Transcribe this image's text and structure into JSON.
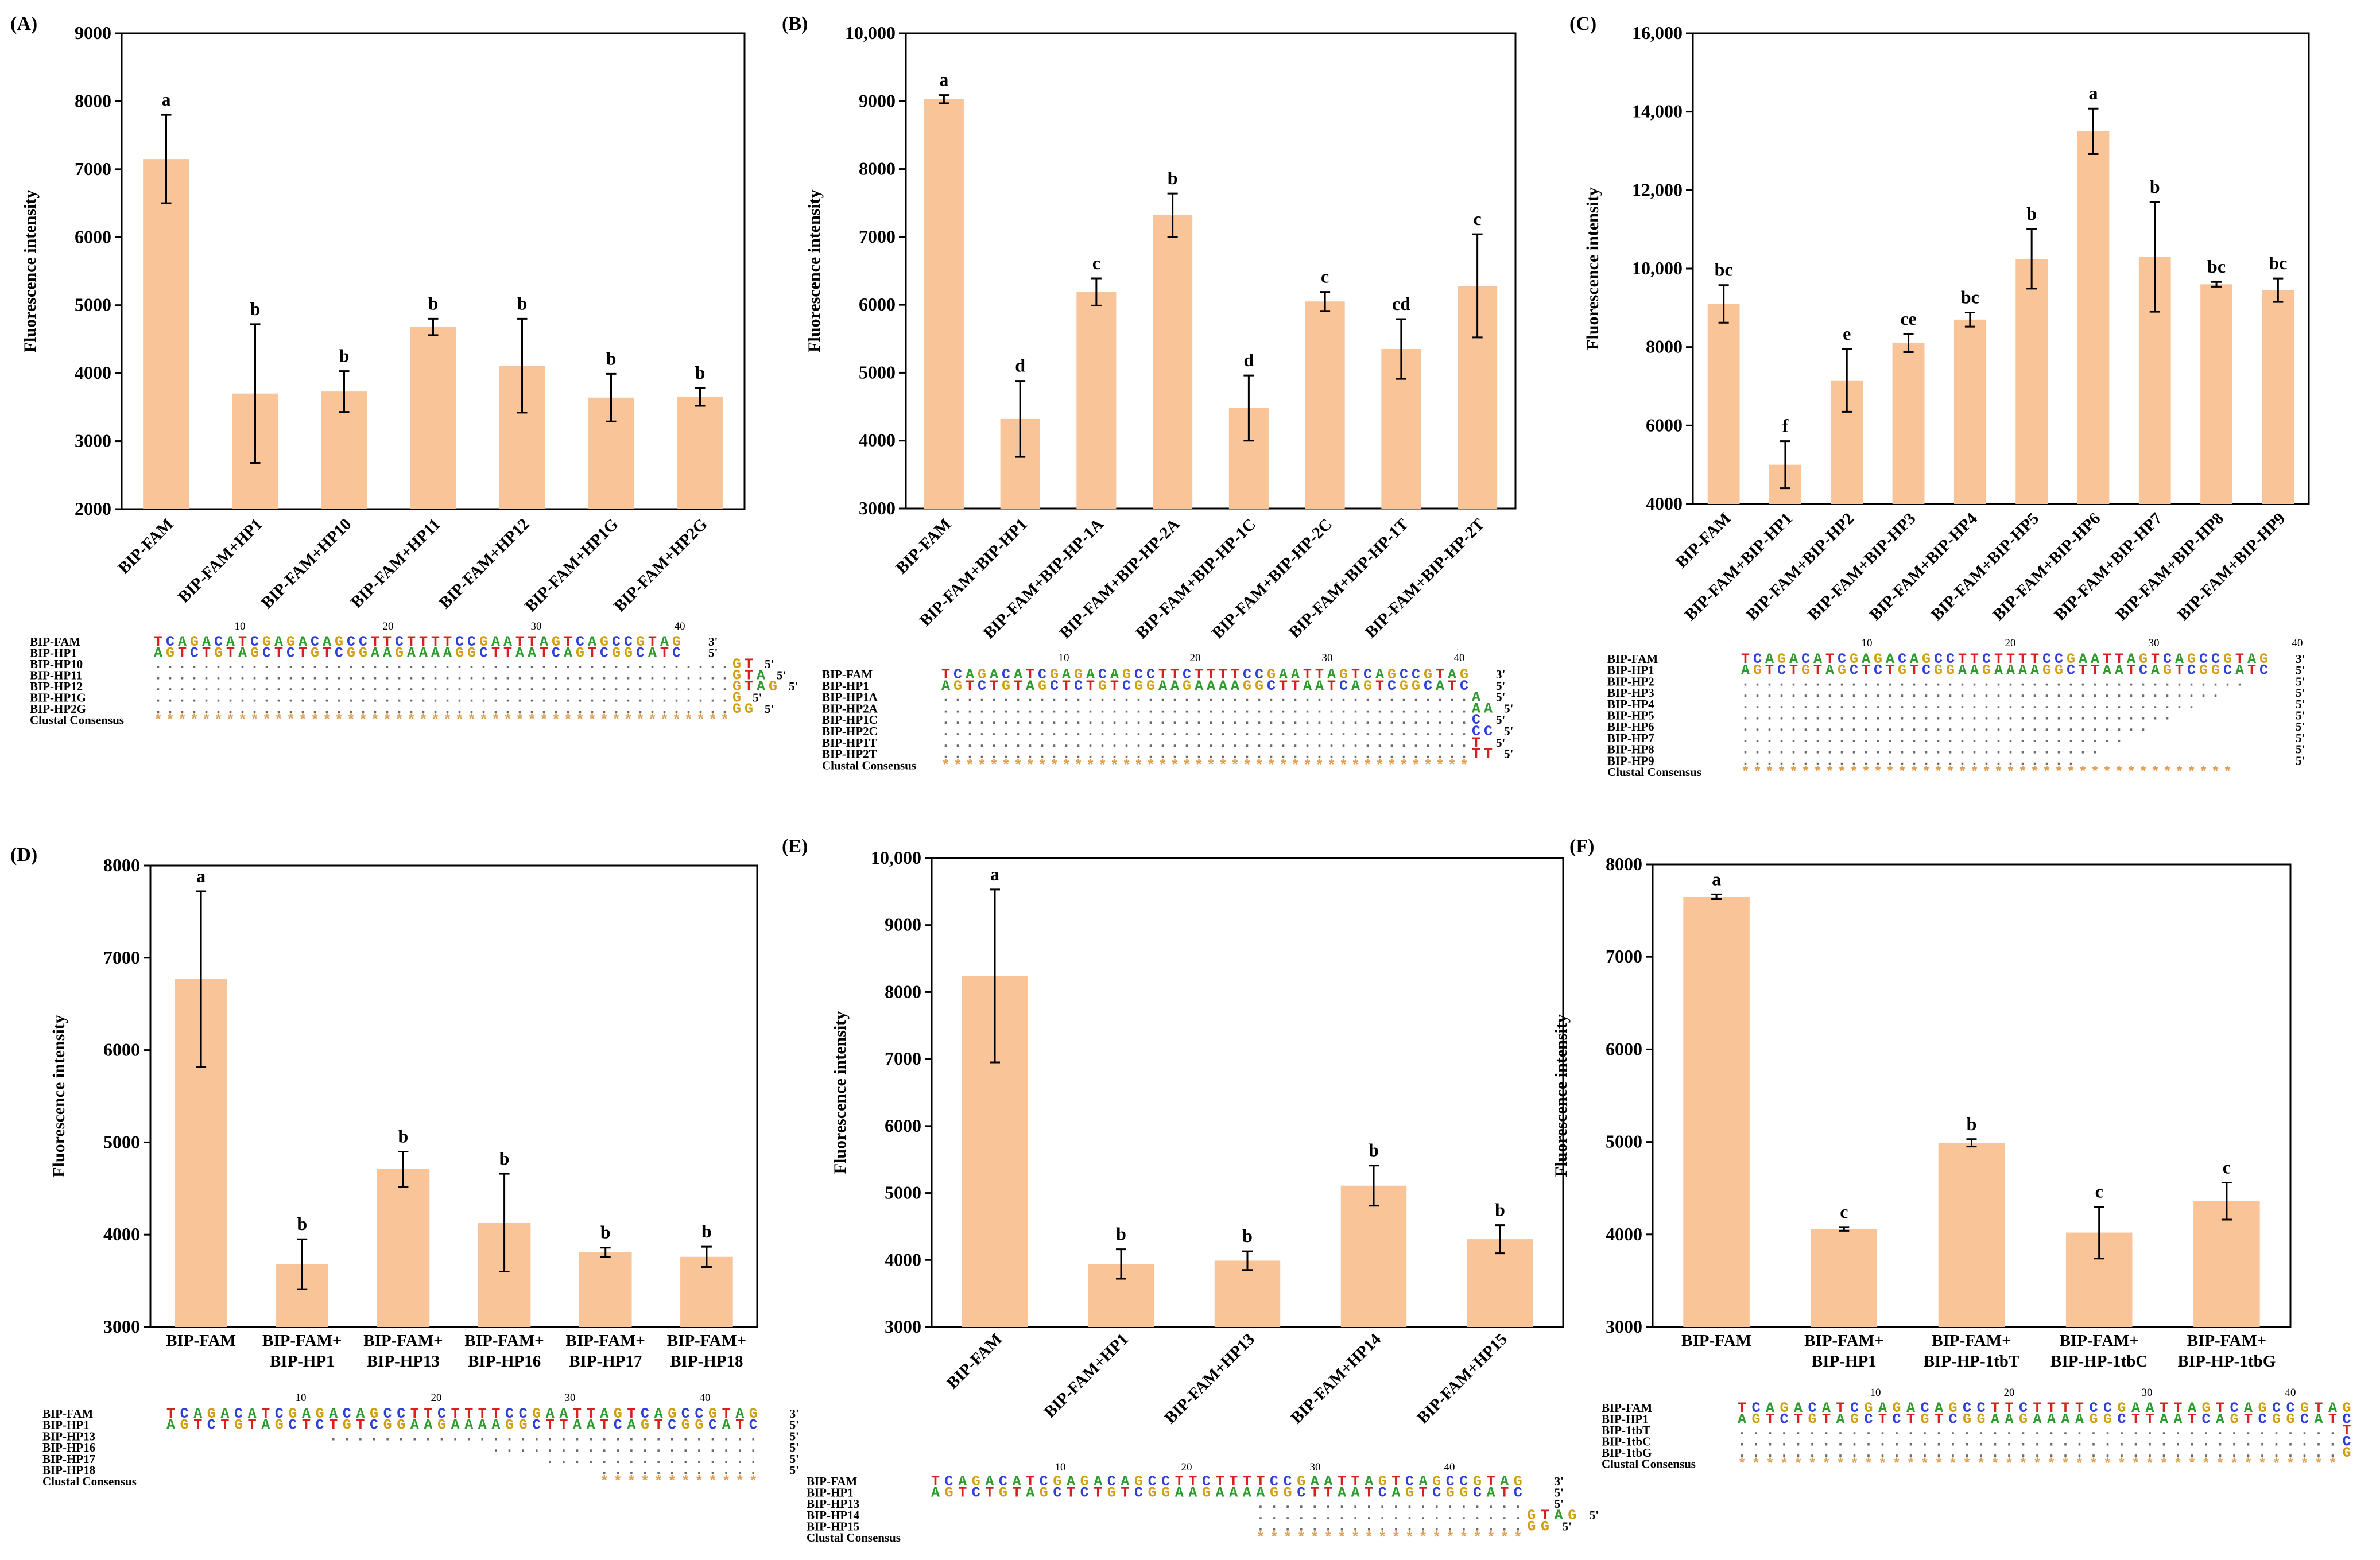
{
  "figure": {
    "ylabel_default": "Fluorescence intensity",
    "colors": {
      "bar": "#f9c498",
      "error": "#000000",
      "A": "#2e9b2e",
      "C": "#2f3fd6",
      "G": "#d0a010",
      "T": "#d82020",
      "dot": "#6a6a6a",
      "consensus": "#e0a050",
      "axis": "#000000"
    }
  },
  "chart_data": [
    {
      "panel_label": "(A)",
      "type": "bar",
      "title": "",
      "xlabel": "",
      "ylabel": "Fluorescence intensity",
      "ylim": [
        2000,
        9000
      ],
      "yticks": [
        "2000",
        "3000",
        "4000",
        "5000",
        "6000",
        "7000",
        "8000",
        "9000"
      ],
      "categories": [
        "BIP-FAM",
        "BIP-FAM+HP1",
        "BIP-FAM+HP10",
        "BIP-FAM+HP11",
        "BIP-FAM+HP12",
        "BIP-FAM+HP1G",
        "BIP-FAM+HP2G"
      ],
      "category_style": "rotated",
      "values": [
        7150,
        3700,
        3730,
        4680,
        4110,
        3640,
        3650
      ],
      "errors": [
        650,
        1020,
        300,
        120,
        690,
        350,
        130
      ],
      "letters": [
        "a",
        "b",
        "b",
        "b",
        "b",
        "b",
        "b"
      ],
      "alignment": {
        "ruler": [
          "10",
          "20",
          "30",
          "40"
        ],
        "rows": [
          {
            "name": "BIP-FAM",
            "seq": "TCAGACATCGAGACAGCCTTCTTTTCCGAATTAGTCAGCCGTAG",
            "end": "3'"
          },
          {
            "name": "BIP-HP1",
            "seq": "AGTCTGTAGCTCTGTCGGAAGAAAAGGCTTAATCAGTCGGCATC",
            "end": "5'"
          },
          {
            "name": "BIP-HP10",
            "seq": "................................................GT",
            "end": "5'"
          },
          {
            "name": "BIP-HP11",
            "seq": "................................................GTA",
            "end": "5'"
          },
          {
            "name": "BIP-HP12",
            "seq": "................................................GTAG",
            "end": "5'"
          },
          {
            "name": "BIP-HP1G",
            "seq": "................................................G",
            "end": "5'"
          },
          {
            "name": "BIP-HP2G",
            "seq": "................................................GG",
            "end": "5'"
          },
          {
            "name": "Clustal Consensus",
            "seq": "************************************************",
            "end": ""
          }
        ]
      }
    },
    {
      "panel_label": "(B)",
      "type": "bar",
      "title": "",
      "xlabel": "",
      "ylabel": "Fluorescence intensity",
      "ylim": [
        3000,
        10000
      ],
      "yticks": [
        "3000",
        "4000",
        "5000",
        "6000",
        "7000",
        "8000",
        "9000",
        "10,000"
      ],
      "categories": [
        "BIP-FAM",
        "BIP-FAM+BIP-HP1",
        "BIP-FAM+BIP-HP-1A",
        "BIP-FAM+BIP-HP-2A",
        "BIP-FAM+BIP-HP-1C",
        "BIP-FAM+BIP-HP-2C",
        "BIP-FAM+BIP-HP-1T",
        "BIP-FAM+BIP-HP-2T"
      ],
      "category_style": "rotated",
      "values": [
        9030,
        4320,
        6190,
        7320,
        4480,
        6050,
        5350,
        6280
      ],
      "errors": [
        60,
        560,
        200,
        320,
        480,
        140,
        440,
        760
      ],
      "letters": [
        "a",
        "d",
        "c",
        "b",
        "d",
        "c",
        "cd",
        "c"
      ],
      "alignment": {
        "ruler": [
          "10",
          "20",
          "30",
          "40"
        ],
        "rows": [
          {
            "name": "BIP-FAM",
            "seq": "TCAGACATCGAGACAGCCTTCTTTTCCGAATTAGTCAGCCGTAG",
            "end": "3'"
          },
          {
            "name": "BIP-HP1",
            "seq": "AGTCTGTAGCTCTGTCGGAAGAAAAGGCTTAATCAGTCGGCATC",
            "end": "5'"
          },
          {
            "name": "BIP-HP1A",
            "seq": "............................................A",
            "end": "5'"
          },
          {
            "name": "BIP-HP2A",
            "seq": "............................................AA",
            "end": "5'"
          },
          {
            "name": "BIP-HP1C",
            "seq": "............................................C",
            "end": "5'"
          },
          {
            "name": "BIP-HP2C",
            "seq": "............................................CC",
            "end": "5'"
          },
          {
            "name": "BIP-HP1T",
            "seq": "............................................T",
            "end": "5'"
          },
          {
            "name": "BIP-HP2T",
            "seq": "............................................TT",
            "end": "5'"
          },
          {
            "name": "Clustal Consensus",
            "seq": "********************************************",
            "end": ""
          }
        ]
      }
    },
    {
      "panel_label": "(C)",
      "type": "bar",
      "title": "",
      "xlabel": "",
      "ylabel": "Fluorescence intensity",
      "ylim": [
        4000,
        16000
      ],
      "yticks": [
        "4000",
        "6000",
        "8000",
        "10,000",
        "12,000",
        "14,000",
        "16,000"
      ],
      "categories": [
        "BIP-FAM",
        "BIP-FAM+BIP-HP1",
        "BIP-FAM+BIP-HP2",
        "BIP-FAM+BIP-HP3",
        "BIP-FAM+BIP-HP4",
        "BIP-FAM+BIP-HP5",
        "BIP-FAM+BIP-HP6",
        "BIP-FAM+BIP-HP7",
        "BIP-FAM+BIP-HP8",
        "BIP-FAM+BIP-HP9"
      ],
      "category_style": "rotated",
      "values": [
        9100,
        5000,
        7150,
        8100,
        8700,
        10250,
        13500,
        10300,
        9600,
        9450
      ],
      "errors": [
        480,
        600,
        800,
        230,
        180,
        760,
        580,
        1400,
        60,
        300
      ],
      "letters": [
        "bc",
        "f",
        "e",
        "ce",
        "bc",
        "b",
        "a",
        "b",
        "bc",
        "bc"
      ],
      "alignment": {
        "ruler": [
          "10",
          "20",
          "30",
          "40"
        ],
        "rows": [
          {
            "name": "BIP-FAM",
            "seq": "TCAGACATCGAGACAGCCTTCTTTTCCGAATTAGTCAGCCGTAG",
            "end": "3'"
          },
          {
            "name": "BIP-HP1",
            "seq": "AGTCTGTAGCTCTGTCGGAAGAAAAGGCTTAATCAGTCGGCATC",
            "end": "5'"
          },
          {
            "name": "BIP-HP2",
            "seq": "..........................................",
            "end": "5'"
          },
          {
            "name": "BIP-HP3",
            "seq": "........................................",
            "end": "5'"
          },
          {
            "name": "BIP-HP4",
            "seq": "......................................",
            "end": "5'"
          },
          {
            "name": "BIP-HP5",
            "seq": "....................................",
            "end": "5'"
          },
          {
            "name": "BIP-HP6",
            "seq": "..................................",
            "end": "5'"
          },
          {
            "name": "BIP-HP7",
            "seq": "................................",
            "end": "5'"
          },
          {
            "name": "BIP-HP8",
            "seq": "..............................",
            "end": "5'"
          },
          {
            "name": "BIP-HP9",
            "seq": "............................",
            "end": "5'"
          },
          {
            "name": "Clustal Consensus",
            "seq": "*****************************************",
            "end": ""
          }
        ]
      }
    },
    {
      "panel_label": "(D)",
      "type": "bar",
      "title": "",
      "xlabel": "",
      "ylabel": "Fluorescence intensity",
      "ylim": [
        3000,
        8000
      ],
      "yticks": [
        "3000",
        "4000",
        "5000",
        "6000",
        "7000",
        "8000"
      ],
      "categories": [
        "BIP-FAM",
        "BIP-FAM+\nBIP-HP1",
        "BIP-FAM+\nBIP-HP13",
        "BIP-FAM+\nBIP-HP16",
        "BIP-FAM+\nBIP-HP17",
        "BIP-FAM+\nBIP-HP18"
      ],
      "category_style": "wrapped",
      "values": [
        6770,
        3680,
        4710,
        4130,
        3810,
        3760
      ],
      "errors": [
        950,
        270,
        190,
        530,
        50,
        110
      ],
      "letters": [
        "a",
        "b",
        "b",
        "b",
        "b",
        "b"
      ],
      "alignment": {
        "ruler": [
          "10",
          "20",
          "30",
          "40"
        ],
        "rows": [
          {
            "name": "BIP-FAM",
            "seq": "TCAGACATCGAGACAGCCTTCTTTTCCGAATTAGTCAGCCGTAG",
            "end": "3'"
          },
          {
            "name": "BIP-HP1",
            "seq": "AGTCTGTAGCTCTGTCGGAAGAAAAGGCTTAATCAGTCGGCATC",
            "end": "5'"
          },
          {
            "name": "BIP-HP13",
            "seq": "            ................................",
            "end": "5'"
          },
          {
            "name": "BIP-HP16",
            "seq": "                        ....................",
            "end": "5'"
          },
          {
            "name": "BIP-HP17",
            "seq": "                            ................",
            "end": "5'"
          },
          {
            "name": "BIP-HP18",
            "seq": "                                ............",
            "end": "5'"
          },
          {
            "name": "Clustal Consensus",
            "seq": "                                ************",
            "end": ""
          }
        ]
      }
    },
    {
      "panel_label": "(E)",
      "type": "bar",
      "title": "",
      "xlabel": "",
      "ylabel": "Fluorescence intensity",
      "ylim": [
        3000,
        10000
      ],
      "yticks": [
        "3000",
        "4000",
        "5000",
        "6000",
        "7000",
        "8000",
        "9000",
        "10,000"
      ],
      "categories": [
        "BIP-FAM",
        "BIP-FAM+HP1",
        "BIP-FAM+HP13",
        "BIP-FAM+HP14",
        "BIP-FAM+HP15"
      ],
      "category_style": "rotated",
      "values": [
        8240,
        3940,
        3990,
        5110,
        4310
      ],
      "errors": [
        1290,
        220,
        140,
        300,
        210
      ],
      "letters": [
        "a",
        "b",
        "b",
        "b",
        "b"
      ],
      "alignment": {
        "ruler": [
          "10",
          "20",
          "30",
          "40"
        ],
        "rows": [
          {
            "name": "BIP-FAM",
            "seq": "TCAGACATCGAGACAGCCTTCTTTTCCGAATTAGTCAGCCGTAG",
            "end": "3'"
          },
          {
            "name": "BIP-HP1",
            "seq": "AGTCTGTAGCTCTGTCGGAAGAAAAGGCTTAATCAGTCGGCATC",
            "end": "5'"
          },
          {
            "name": "BIP-HP13",
            "seq": "                        ....................",
            "end": "5'"
          },
          {
            "name": "BIP-HP14",
            "seq": "                        ....................GTAG",
            "end": "5'"
          },
          {
            "name": "BIP-HP15",
            "seq": "                        ....................GG",
            "end": "5'"
          },
          {
            "name": "Clustal Consensus",
            "seq": "                        ********************",
            "end": ""
          }
        ]
      }
    },
    {
      "panel_label": "(F)",
      "type": "bar",
      "title": "",
      "xlabel": "",
      "ylabel": "Fluorescence intensity",
      "ylim": [
        3000,
        8000
      ],
      "yticks": [
        "3000",
        "4000",
        "5000",
        "6000",
        "7000",
        "8000"
      ],
      "categories": [
        "BIP-FAM",
        "BIP-FAM+\nBIP-HP1",
        "BIP-FAM+\nBIP-HP-1tbT",
        "BIP-FAM+\nBIP-HP-1tbC",
        "BIP-FAM+\nBIP-HP-1tbG"
      ],
      "category_style": "wrapped",
      "values": [
        7650,
        4060,
        4990,
        4020,
        4360
      ],
      "errors": [
        25,
        20,
        40,
        280,
        200
      ],
      "letters": [
        "a",
        "c",
        "b",
        "c",
        "c"
      ],
      "alignment": {
        "ruler": [
          "10",
          "20",
          "30",
          "40"
        ],
        "rows": [
          {
            "name": "BIP-FAM",
            "seq": "TCAGACATCGAGACAGCCTTCTTTTCCGAATTAGTCAGCCGTAG",
            "end": "3'"
          },
          {
            "name": "BIP-HP1",
            "seq": "AGTCTGTAGCTCTGTCGGAAGAAAAGGCTTAATCAGTCGGCATC",
            "end": "5'"
          },
          {
            "name": "BIP-1tbT",
            "seq": "...........................................T",
            "end": "5'"
          },
          {
            "name": "BIP-1tbC",
            "seq": "...........................................C",
            "end": "5'"
          },
          {
            "name": "BIP-1tbG",
            "seq": "...........................................G",
            "end": "5'"
          },
          {
            "name": "Clustal Consensus",
            "seq": "*******************************************",
            "end": ""
          }
        ]
      }
    }
  ]
}
